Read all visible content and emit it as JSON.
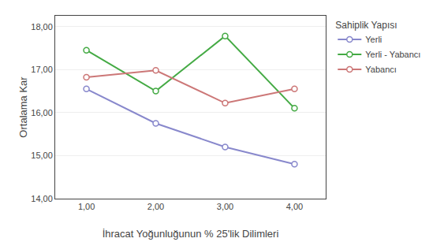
{
  "chart_data": {
    "type": "line",
    "x": [
      1.0,
      2.0,
      3.0,
      4.0
    ],
    "series": [
      {
        "name": "Yerli",
        "color": "#8888CC",
        "values": [
          16.55,
          15.75,
          15.2,
          14.8
        ]
      },
      {
        "name": "Yerli - Yabancı",
        "color": "#44AA44",
        "values": [
          17.45,
          16.5,
          17.78,
          16.1
        ]
      },
      {
        "name": "Yabancı",
        "color": "#CC7777",
        "values": [
          16.82,
          16.98,
          16.22,
          16.55
        ]
      }
    ],
    "xlabel": "İhracat Yoğunluğunun % 25'lik Dilimleri",
    "ylabel": "Ortalama Kar",
    "legend_title": "Sahiplik Yapısı",
    "xlim": [
      0.55,
      4.45
    ],
    "ylim": [
      14.0,
      18.25
    ],
    "xticks": [
      {
        "value": 1.0,
        "label": "1,00"
      },
      {
        "value": 2.0,
        "label": "2,00"
      },
      {
        "value": 3.0,
        "label": "3,00"
      },
      {
        "value": 4.0,
        "label": "4,00"
      }
    ],
    "yticks": [
      {
        "value": 14.0,
        "label": "14,00"
      },
      {
        "value": 15.0,
        "label": "15,00"
      },
      {
        "value": 16.0,
        "label": "16,00"
      },
      {
        "value": 17.0,
        "label": "17,00"
      },
      {
        "value": 18.0,
        "label": "18,00"
      }
    ],
    "grid": "y",
    "legend": "right",
    "marker": "circle"
  }
}
